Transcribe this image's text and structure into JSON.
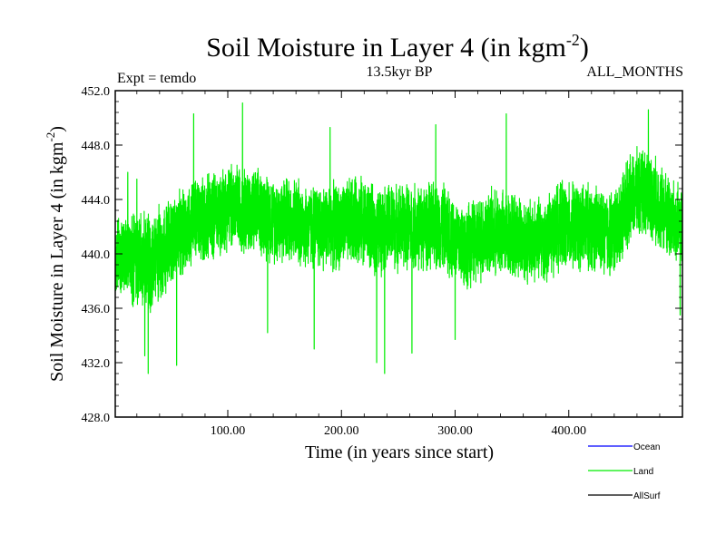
{
  "chart_data": {
    "type": "line",
    "title_main": "Soil Moisture in Layer 4 (in kgm",
    "title_sup": "-2",
    "title_close": ")",
    "left_subtitle": "Expt = temdo",
    "center_subtitle": "13.5kyr BP",
    "right_subtitle": "ALL_MONTHS",
    "xlabel": "Time (in years since start)",
    "ylabel_main": "Soil Moisture in Layer 4 (in kgm",
    "ylabel_sup": "-2",
    "ylabel_close": ")",
    "xlim": [
      1,
      500
    ],
    "ylim": [
      428.0,
      452.0
    ],
    "x_ticks": [
      100,
      200,
      300,
      400
    ],
    "x_tick_labels": [
      "100.00",
      "200.00",
      "300.00",
      "400.00"
    ],
    "y_ticks": [
      428,
      432,
      436,
      440,
      444,
      448,
      452
    ],
    "y_tick_labels": [
      "428.0",
      "432.0",
      "436.0",
      "440.0",
      "444.0",
      "448.0",
      "452.0"
    ],
    "series": [
      {
        "name": "Ocean",
        "color": "#0000ff",
        "values": []
      },
      {
        "name": "AllSurf",
        "color": "#000000",
        "values": []
      },
      {
        "name": "Land",
        "color": "#00ee00",
        "envelope_x": [
          1,
          10,
          20,
          30,
          40,
          50,
          60,
          70,
          80,
          90,
          100,
          110,
          120,
          130,
          140,
          150,
          160,
          170,
          180,
          190,
          200,
          210,
          220,
          230,
          240,
          250,
          260,
          270,
          280,
          290,
          300,
          310,
          320,
          330,
          340,
          350,
          360,
          370,
          380,
          390,
          400,
          410,
          420,
          430,
          440,
          450,
          460,
          470,
          480,
          490,
          500
        ],
        "envelope_mean": [
          439.5,
          440.0,
          439.5,
          439.0,
          440.0,
          441.0,
          441.5,
          442.5,
          442.5,
          443.0,
          443.5,
          443.5,
          443.0,
          443.0,
          442.5,
          442.5,
          442.5,
          442.0,
          442.0,
          442.0,
          442.0,
          442.5,
          442.5,
          441.5,
          442.0,
          442.0,
          442.0,
          442.0,
          442.0,
          442.0,
          441.0,
          440.5,
          441.0,
          441.5,
          441.5,
          441.5,
          441.0,
          441.0,
          441.0,
          442.0,
          442.0,
          442.0,
          442.0,
          441.5,
          441.5,
          443.5,
          444.5,
          444.5,
          443.5,
          442.5,
          441.5
        ],
        "envelope_amp": [
          3.0,
          3.5,
          4.0,
          4.0,
          4.0,
          3.5,
          3.5,
          3.5,
          3.5,
          3.5,
          3.5,
          3.5,
          3.5,
          3.5,
          3.5,
          3.5,
          3.5,
          3.5,
          3.5,
          3.5,
          3.5,
          3.5,
          3.5,
          3.5,
          3.5,
          3.5,
          3.5,
          3.5,
          3.5,
          3.5,
          3.5,
          3.5,
          3.5,
          3.5,
          3.5,
          3.5,
          3.5,
          3.5,
          3.5,
          3.5,
          3.5,
          3.5,
          3.5,
          3.5,
          3.5,
          3.5,
          3.5,
          3.5,
          3.5,
          3.5,
          3.5
        ],
        "extremes": [
          {
            "x": 12,
            "y": 446.0
          },
          {
            "x": 20,
            "y": 445.5
          },
          {
            "x": 27,
            "y": 432.5
          },
          {
            "x": 30,
            "y": 431.2
          },
          {
            "x": 55,
            "y": 431.8
          },
          {
            "x": 70,
            "y": 450.3
          },
          {
            "x": 113,
            "y": 451.1
          },
          {
            "x": 135,
            "y": 434.2
          },
          {
            "x": 176,
            "y": 433.0
          },
          {
            "x": 190,
            "y": 449.3
          },
          {
            "x": 231,
            "y": 432.0
          },
          {
            "x": 238,
            "y": 431.2
          },
          {
            "x": 262,
            "y": 432.7
          },
          {
            "x": 283,
            "y": 449.5
          },
          {
            "x": 300,
            "y": 433.7
          },
          {
            "x": 345,
            "y": 450.3
          },
          {
            "x": 470,
            "y": 450.6
          },
          {
            "x": 498,
            "y": 435.5
          }
        ]
      }
    ],
    "legend": [
      {
        "label": "Ocean",
        "color": "#0000ff"
      },
      {
        "label": "Land",
        "color": "#00ee00"
      },
      {
        "label": "AllSurf",
        "color": "#000000"
      }
    ]
  }
}
